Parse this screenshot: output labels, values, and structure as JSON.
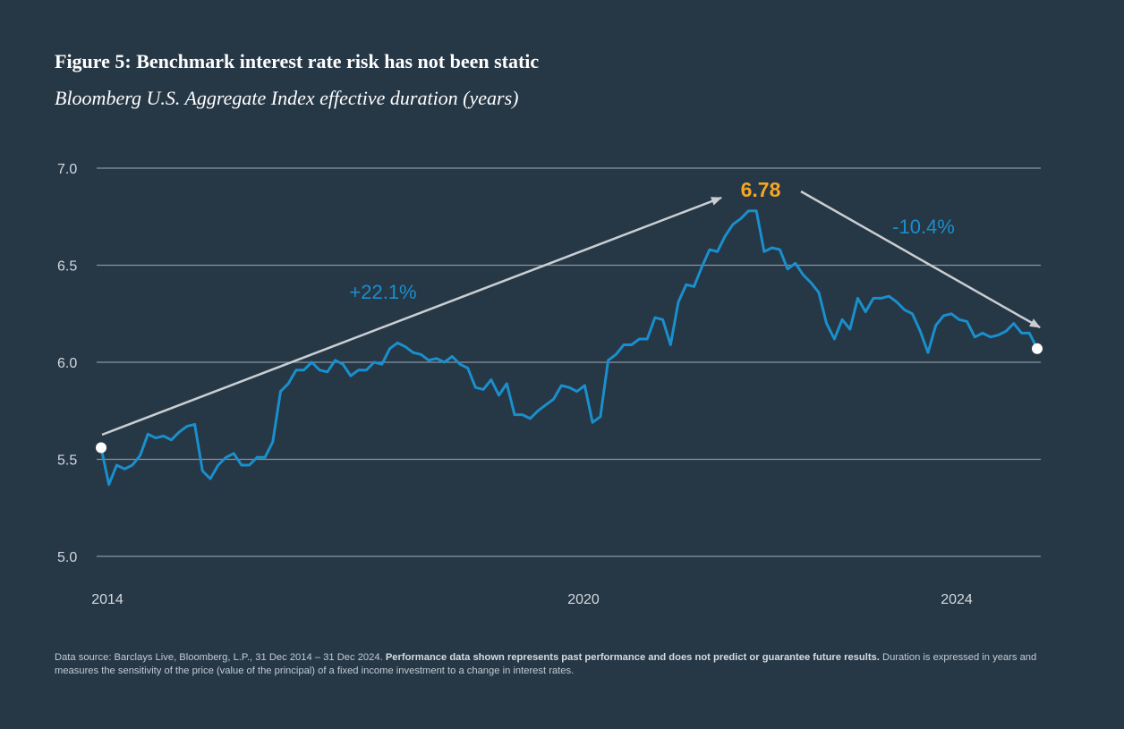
{
  "title": "Figure 5: Benchmark interest rate risk has not been static",
  "subtitle": "Bloomberg U.S. Aggregate Index effective duration (years)",
  "colors": {
    "background": "#263746",
    "line": "#1a8fcc",
    "peak": "#f5a623",
    "arrow": "#c9ced3",
    "grid": "#8795a1"
  },
  "chart_data": {
    "type": "line",
    "ylim": [
      5.0,
      7.0
    ],
    "yticks": [
      "5.0",
      "5.5",
      "6.0",
      "6.5",
      "7.0"
    ],
    "xticks": [
      "2014",
      "2020",
      "2024"
    ],
    "grid": true,
    "series": [
      {
        "values": [
          5.56,
          5.37,
          5.47,
          5.45,
          5.47,
          5.52,
          5.63,
          5.61,
          5.62,
          5.6,
          5.64,
          5.67,
          5.68,
          5.44,
          5.4,
          5.47,
          5.51,
          5.53,
          5.47,
          5.47,
          5.51,
          5.51,
          5.59,
          5.85,
          5.89,
          5.96,
          5.96,
          6.0,
          5.96,
          5.95,
          6.01,
          5.99,
          5.93,
          5.96,
          5.96,
          6.0,
          5.99,
          6.07,
          6.1,
          6.08,
          6.05,
          6.04,
          6.01,
          6.02,
          6.0,
          6.03,
          5.99,
          5.97,
          5.87,
          5.86,
          5.91,
          5.83,
          5.89,
          5.73,
          5.73,
          5.71,
          5.75,
          5.78,
          5.81,
          5.88,
          5.87,
          5.85,
          5.88,
          5.69,
          5.72,
          6.01,
          6.04,
          6.09,
          6.09,
          6.12,
          6.12,
          6.23,
          6.22,
          6.09,
          6.31,
          6.4,
          6.39,
          6.49,
          6.58,
          6.57,
          6.65,
          6.71,
          6.74,
          6.78,
          6.78,
          6.57,
          6.59,
          6.58,
          6.48,
          6.51,
          6.45,
          6.41,
          6.36,
          6.2,
          6.12,
          6.22,
          6.17,
          6.33,
          6.26,
          6.33,
          6.33,
          6.34,
          6.31,
          6.27,
          6.25,
          6.16,
          6.05,
          6.19,
          6.24,
          6.25,
          6.22,
          6.21,
          6.13,
          6.15,
          6.13,
          6.14,
          6.16,
          6.2,
          6.15,
          6.15,
          6.07
        ]
      }
    ],
    "start_value": 5.56,
    "end_value": 6.07,
    "peak_value": 6.78
  },
  "annotations": {
    "rise": "+22.1%",
    "peak": "6.78",
    "fall": "-10.4%"
  },
  "footnote": {
    "part1": "Data source: Barclays Live, Bloomberg, L.P., 31 Dec 2014 – 31 Dec 2024. ",
    "bold": "Performance data shown represents past performance and does not predict or guarantee future results.",
    "part2": " Duration is expressed in years and measures the sensitivity of the price (value of the principal) of a fixed income investment to a change in interest rates."
  }
}
